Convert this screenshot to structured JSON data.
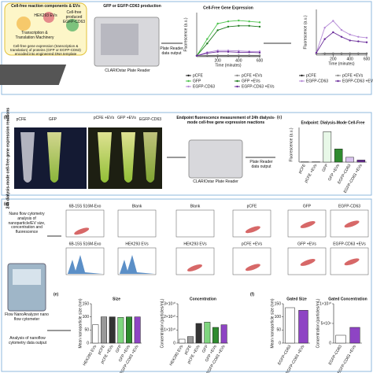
{
  "panel_a": {
    "reaction_title": "Cell-free reaction components & EVs",
    "hek": "HEK293 EVs",
    "produced": "Cell-free produced EGFP-CD63",
    "machinery": "Transcription & Translation Machinery",
    "caption": "Cell-free gene expression (transcription & translation) of proteins (GFP or EGFP-CD63) encoded into engineered DNA template",
    "production": "GFP or EGFP-CD63 production",
    "reader": "CLARIOstar Plate Reader",
    "output": "Plate Reader data output"
  },
  "panel_b": {
    "label": "(b)",
    "tubes": [
      "pCFE",
      "GFP",
      "pCFE +EVs",
      "GFP +EVs",
      "EGFP-CD63"
    ],
    "side": "24h dialysis-mode cell-free gene expression reactions",
    "measure": "Endpoint fluorescence measurement of 24h dialysis-mode cell-free gene expression reactions",
    "reader": "CLARIOstar Plate Reader",
    "output": "Plate Reader data output"
  },
  "panel_c": {
    "label": "(c)"
  },
  "panel_d": {
    "label": "(d)",
    "side": "Nano flow cytometry analysis of nanoparticle/EV size, concentration and fluorescence",
    "instrument": "Flow NanoAnalyzer nano flow cytometer",
    "analysis": "Analysis of nanoflow cytometry data output",
    "plots": [
      "6B-15S 516M-Exo",
      "Blank",
      "Blank",
      "pCFE",
      "GFP",
      "EGFP-CD63",
      "6B-15S 516M-Exo",
      "HEK293 EVs",
      "HEK293 EVs",
      "pCFE +EVs",
      "GFP +EVs",
      "EGFP-CD63 +EVs"
    ]
  },
  "panel_e": {
    "label": "(e)"
  },
  "panel_f": {
    "label": "(f)"
  },
  "chart_data": [
    {
      "type": "line",
      "title": "Cell-Free Gene Expression",
      "xlabel": "Time (minutes)",
      "ylabel": "Fluorescence (a.u.)",
      "x": [
        0,
        100,
        200,
        300,
        400,
        500,
        600
      ],
      "xlim": [
        0,
        600
      ],
      "xticks": [
        200,
        400,
        600
      ],
      "ylim": [
        0,
        100
      ],
      "series": [
        {
          "name": "pCFE",
          "color": "#222222",
          "values": [
            2,
            2,
            2,
            2,
            2,
            2,
            2
          ]
        },
        {
          "name": "pCFE +EVs",
          "color": "#888888",
          "values": [
            2,
            3,
            3,
            3,
            3,
            3,
            3
          ]
        },
        {
          "name": "GFP",
          "color": "#4cc24c",
          "values": [
            2,
            40,
            75,
            80,
            82,
            80,
            78
          ]
        },
        {
          "name": "GFP +EVs",
          "color": "#1f7a1f",
          "values": [
            2,
            30,
            60,
            68,
            70,
            70,
            68
          ]
        },
        {
          "name": "EGFP-CD63",
          "color": "#b58ad6",
          "values": [
            2,
            10,
            14,
            14,
            13,
            12,
            12
          ]
        },
        {
          "name": "EGFP-CD63 +EVs",
          "color": "#6a2c9a",
          "values": [
            2,
            8,
            11,
            11,
            10,
            10,
            9
          ]
        }
      ]
    },
    {
      "type": "line",
      "xlabel": "Time (minutes)",
      "ylabel": "Fluorescence (a.u.)",
      "x": [
        0,
        100,
        200,
        300,
        400,
        500,
        600
      ],
      "xlim": [
        0,
        600
      ],
      "xticks": [
        200,
        400,
        600
      ],
      "ylim": [
        0,
        100
      ],
      "series": [
        {
          "name": "pCFE",
          "color": "#222222",
          "values": [
            3,
            3,
            3,
            3,
            3,
            3,
            3
          ]
        },
        {
          "name": "pCFE +EVs",
          "color": "#888888",
          "values": [
            3,
            4,
            4,
            4,
            4,
            4,
            4
          ]
        },
        {
          "name": "EGFP-CD63",
          "color": "#b58ad6",
          "values": [
            5,
            60,
            75,
            55,
            45,
            40,
            38
          ]
        },
        {
          "name": "EGFP-CD63 +EVs",
          "color": "#6a2c9a",
          "values": [
            5,
            35,
            50,
            40,
            32,
            30,
            28
          ]
        }
      ]
    },
    {
      "type": "bar",
      "title": "Endpoint: Dialysis-Mode Cell-Free",
      "ylabel": "Fluorescence (a.u.)",
      "ylim": [
        0,
        25
      ],
      "categories": [
        "pCFE",
        "pCFE +EVs",
        "GFP",
        "GFP +EVs",
        "EGFP-CD63",
        "EGFP-CD63 +EVs"
      ],
      "values": [
        0.2,
        0.2,
        22,
        9.5,
        3.5,
        1.5
      ],
      "colors": [
        "#ffffff",
        "#999999",
        "#e8f8e8",
        "#2e8b2e",
        "#d9c2ee",
        "#6a2c9a"
      ]
    },
    {
      "type": "bar",
      "title": "Size",
      "ylabel": "Mean nanoparticle size (nm)",
      "ylim": [
        0,
        150
      ],
      "yticks": [
        0,
        50,
        100,
        150
      ],
      "categories": [
        "HEK293 EVs",
        "pCFE",
        "pCFE +EVs",
        "GFP",
        "GFP +EVs",
        "EGFP-CD63 +EVs"
      ],
      "values": [
        70,
        100,
        100,
        98,
        100,
        100
      ],
      "colors": [
        "#ffffff",
        "#999999",
        "#333333",
        "#7fd67f",
        "#2e8b2e",
        "#8e44c4"
      ]
    },
    {
      "type": "bar",
      "title": "Concentration",
      "ylabel": "Concentration (particles/mL)",
      "ylim": [
        0,
        30000000000
      ],
      "yticks": [
        0,
        {
          "value": 10000000000,
          "label": "1×10¹⁰"
        },
        {
          "value": 20000000000,
          "label": "2×10¹⁰"
        },
        {
          "value": 30000000000,
          "label": "3×10¹⁰"
        }
      ],
      "categories": [
        "HEK293 EVs",
        "pCFE",
        "pCFE +EVs",
        "GFP",
        "GFP +EVs",
        "EGFP-CD63 +EVs"
      ],
      "values": [
        3000000000,
        5000000000,
        15000000000,
        16000000000,
        12000000000,
        14000000000
      ],
      "colors": [
        "#ffffff",
        "#999999",
        "#333333",
        "#7fd67f",
        "#2e8b2e",
        "#8e44c4"
      ]
    },
    {
      "type": "bar",
      "title": "Gated Size",
      "ylabel": "Mean nanoparticle size (nm)",
      "ylim": [
        0,
        150
      ],
      "yticks": [
        0,
        50,
        100,
        150
      ],
      "categories": [
        "EGFP-CD63",
        "EGFP-CD63 +EVs"
      ],
      "values": [
        135,
        125
      ],
      "colors": [
        "#ffffff",
        "#8e44c4"
      ]
    },
    {
      "type": "bar",
      "title": "Gated Concentration",
      "ylabel": "Concentration (particles/mL)",
      "ylim": [
        0,
        10000000000
      ],
      "yticks": [
        0,
        {
          "value": 5000000000,
          "label": "5×10⁹"
        },
        {
          "value": 10000000000,
          "label": "1×10¹⁰"
        }
      ],
      "categories": [
        "EGFP-CD63",
        "EGFP-CD63 +EVs"
      ],
      "values": [
        2000000000,
        4000000000
      ],
      "colors": [
        "#ffffff",
        "#8e44c4"
      ]
    }
  ]
}
